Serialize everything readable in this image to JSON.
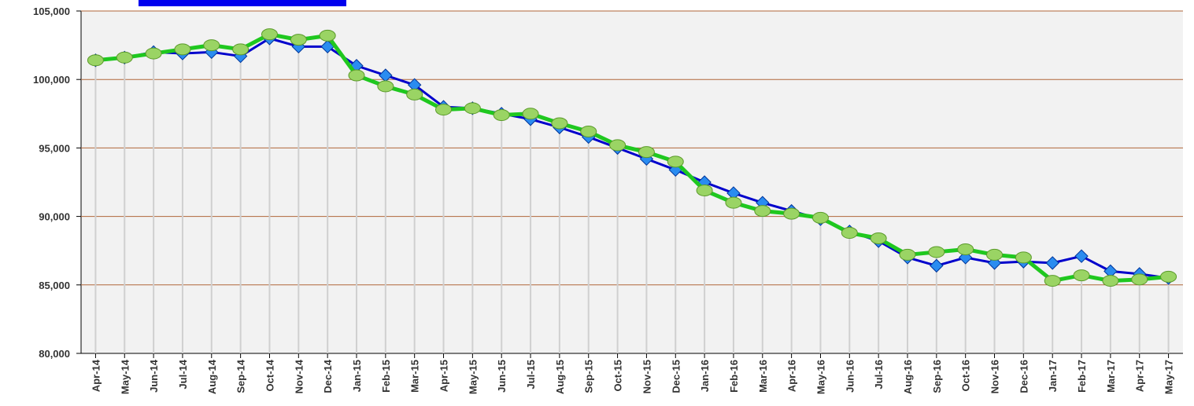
{
  "chart_data": {
    "type": "line",
    "categories": [
      "Apr-14",
      "May-14",
      "Jun-14",
      "Jul-14",
      "Aug-14",
      "Sep-14",
      "Oct-14",
      "Nov-14",
      "Dec-14",
      "Jan-15",
      "Feb-15",
      "Mar-15",
      "Apr-15",
      "May-15",
      "Jun-15",
      "Jul-15",
      "Aug-15",
      "Sep-15",
      "Oct-15",
      "Nov-15",
      "Dec-15",
      "Jan-16",
      "Feb-16",
      "Mar-16",
      "Apr-16",
      "May-16",
      "Jun-16",
      "Jul-16",
      "Aug-16",
      "Sep-16",
      "Oct-16",
      "Nov-16",
      "Dec-16",
      "Jan-17",
      "Feb-17",
      "Mar-17",
      "Apr-17",
      "May-17"
    ],
    "series": [
      {
        "color": "#0000cc",
        "marker": "diamond",
        "values": [
          101400,
          101600,
          102000,
          101900,
          102000,
          101700,
          103000,
          102400,
          102400,
          101000,
          100300,
          99600,
          98000,
          97900,
          97500,
          97100,
          96500,
          95800,
          95000,
          94200,
          93400,
          92500,
          91700,
          91000,
          90400,
          89800,
          88900,
          88200,
          87000,
          86400,
          87000,
          86600,
          86700,
          86600,
          87100,
          86000,
          85800,
          85500
        ]
      },
      {
        "color": "#1fc81f",
        "marker": "circle",
        "values": [
          101400,
          101600,
          101900,
          102200,
          102500,
          102200,
          103300,
          102900,
          103200,
          100300,
          99500,
          98900,
          97800,
          97900,
          97400,
          97500,
          96800,
          96200,
          95200,
          94700,
          94000,
          91900,
          91000,
          90400,
          90200,
          89900,
          88800,
          88400,
          87200,
          87400,
          87600,
          87200,
          87000,
          85300,
          85700,
          85300,
          85400,
          85600
        ]
      }
    ],
    "ylim": [
      80000,
      105000
    ],
    "yticks": [
      {
        "value": 80000,
        "label": "80,000"
      },
      {
        "value": 85000,
        "label": "85,000"
      },
      {
        "value": 90000,
        "label": "90,000"
      },
      {
        "value": 95000,
        "label": "95,000"
      },
      {
        "value": 100000,
        "label": "100,000"
      },
      {
        "value": 105000,
        "label": "105,000"
      }
    ],
    "grid": true
  }
}
